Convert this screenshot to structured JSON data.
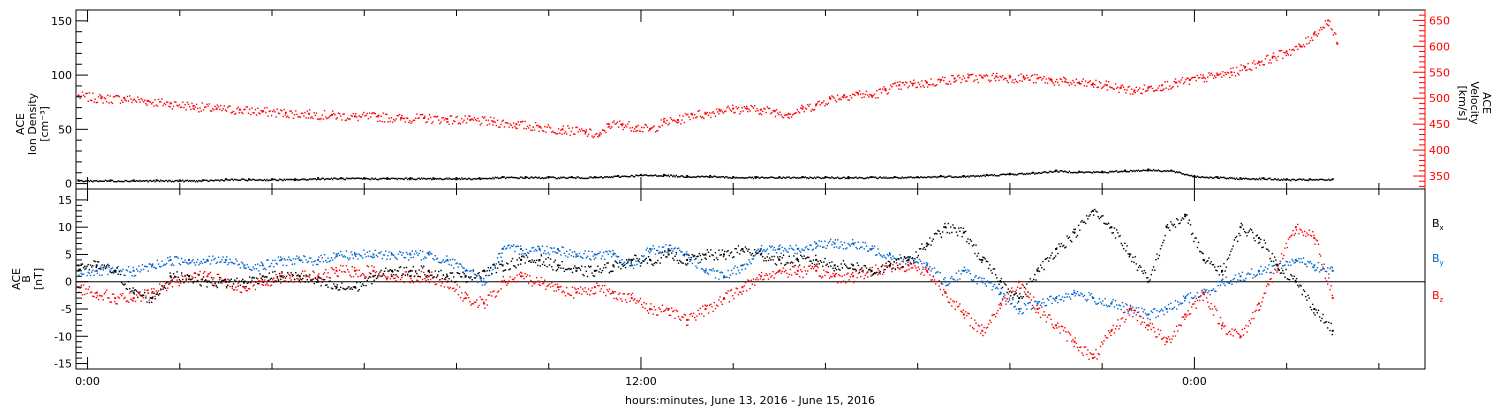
{
  "colors": {
    "axis": "#000000",
    "density": "#000000",
    "velocity": "#ff0000",
    "bx": "#000000",
    "by": "#0066cc",
    "bz": "#ff0000"
  },
  "chart_data": [
    {
      "type": "scatter",
      "panel": "plasma",
      "title": "",
      "ylabel": [
        "ACE",
        "Ion Density",
        "[cm⁻³]"
      ],
      "ylim": [
        -5,
        160
      ],
      "yticks": [
        0,
        50,
        100,
        150
      ],
      "y2label": [
        "ACE",
        "Velocity",
        "[km/s]"
      ],
      "y2lim": [
        325,
        670
      ],
      "y2ticks": [
        350,
        400,
        450,
        500,
        550,
        600,
        650
      ],
      "x_hours": [
        -0.25,
        29
      ],
      "grid": false,
      "series": [
        {
          "axis": "left",
          "color": "#000000",
          "x": [
            -0.2,
            0.5,
            1.0,
            1.5,
            2.0,
            2.5,
            3.0,
            3.5,
            4.0,
            4.5,
            5.0,
            5.5,
            6.0,
            6.5,
            7.0,
            7.5,
            8.0,
            8.5,
            9.0,
            9.5,
            10.0,
            10.5,
            11.0,
            11.5,
            12.0,
            12.5,
            13.0,
            13.5,
            14.0,
            14.5,
            15.0,
            15.5,
            16.0,
            16.5,
            17.0,
            17.5,
            18.0,
            18.5,
            19.0,
            19.5,
            20.0,
            20.5,
            21.0,
            21.5,
            22.0,
            22.5,
            23.0,
            23.5,
            24.0,
            24.5,
            25.0,
            25.5,
            26.0,
            26.5,
            27.0
          ],
          "y": [
            3,
            3,
            3,
            3,
            3,
            3,
            4,
            4,
            4,
            4,
            5,
            5,
            5,
            5,
            5,
            5,
            5,
            5,
            6,
            6,
            6,
            6,
            6,
            7,
            8,
            8,
            7,
            7,
            6,
            6,
            6,
            6,
            6,
            6,
            6,
            6,
            6,
            7,
            7,
            8,
            9,
            10,
            12,
            11,
            11,
            12,
            13,
            12,
            7,
            6,
            5,
            5,
            4,
            4,
            4
          ]
        },
        {
          "axis": "right",
          "color": "#ff0000",
          "x": [
            -0.2,
            0.3,
            0.8,
            1.3,
            1.8,
            2.3,
            2.8,
            3.3,
            3.8,
            4.3,
            4.8,
            5.3,
            5.8,
            6.3,
            6.8,
            7.3,
            7.8,
            8.3,
            8.8,
            9.3,
            9.8,
            10.3,
            10.8,
            11.1,
            11.3,
            11.6,
            11.9,
            12.2,
            12.5,
            12.8,
            13.1,
            13.4,
            13.7,
            14.0,
            14.3,
            14.6,
            14.9,
            15.2,
            15.5,
            15.8,
            16.1,
            16.4,
            16.7,
            17.0,
            17.3,
            17.6,
            17.9,
            18.2,
            18.5,
            18.8,
            19.1,
            19.4,
            19.7,
            20.0,
            20.3,
            20.6,
            20.9,
            21.2,
            21.5,
            21.8,
            22.1,
            22.4,
            22.7,
            23.0,
            23.3,
            23.6,
            23.9,
            24.2,
            24.5,
            24.8,
            25.1,
            25.4,
            25.7,
            26.0,
            26.3,
            26.6,
            26.9,
            27.1
          ],
          "y": [
            505,
            500,
            500,
            495,
            490,
            485,
            480,
            478,
            475,
            472,
            470,
            468,
            465,
            465,
            462,
            462,
            460,
            458,
            455,
            450,
            445,
            440,
            435,
            428,
            450,
            450,
            445,
            440,
            455,
            458,
            470,
            470,
            478,
            480,
            480,
            478,
            475,
            470,
            480,
            488,
            500,
            505,
            510,
            505,
            518,
            525,
            528,
            530,
            535,
            538,
            540,
            540,
            542,
            540,
            540,
            538,
            535,
            532,
            530,
            528,
            525,
            520,
            515,
            520,
            525,
            530,
            535,
            540,
            545,
            550,
            560,
            570,
            580,
            590,
            600,
            625,
            650,
            605
          ]
        }
      ]
    },
    {
      "type": "scatter",
      "panel": "magnetic",
      "title": "",
      "ylabel": [
        "ACE",
        "B",
        "[nT]"
      ],
      "ylim": [
        -16,
        17
      ],
      "yticks": [
        -15,
        -10,
        -5,
        0,
        5,
        10,
        15
      ],
      "x_hours": [
        -0.25,
        29
      ],
      "legend": [
        "Bx",
        "By",
        "Bz"
      ],
      "legend_position": "right",
      "grid": false,
      "series": [
        {
          "name": "Bx",
          "color": "#000000",
          "x": [
            -0.2,
            0.2,
            0.6,
            1.0,
            1.4,
            1.8,
            2.2,
            2.6,
            3.0,
            3.4,
            3.8,
            4.2,
            4.6,
            5.0,
            5.4,
            5.8,
            6.2,
            6.6,
            7.0,
            7.4,
            7.8,
            8.2,
            8.6,
            9.0,
            9.4,
            9.8,
            10.2,
            10.6,
            11.0,
            11.4,
            11.8,
            12.2,
            12.6,
            13.0,
            13.4,
            13.8,
            14.2,
            14.6,
            15.0,
            15.4,
            15.8,
            16.2,
            16.6,
            17.0,
            17.4,
            17.8,
            18.2,
            18.6,
            19.0,
            19.4,
            19.8,
            20.2,
            20.6,
            21.0,
            21.4,
            21.8,
            22.2,
            22.6,
            23.0,
            23.4,
            23.8,
            24.2,
            24.6,
            25.0,
            25.4,
            25.8,
            26.2,
            26.6,
            27.0
          ],
          "y": [
            3,
            3,
            2,
            -2,
            -3,
            1,
            1,
            0,
            0,
            0,
            1,
            1,
            1,
            0,
            -1,
            -1,
            1,
            2,
            2,
            2,
            1,
            1,
            2,
            3,
            4,
            4,
            3,
            2,
            2,
            3,
            4,
            4,
            5,
            4,
            5,
            5,
            6,
            5,
            4,
            4,
            4,
            3,
            3,
            2,
            3,
            4,
            7,
            10,
            9,
            4,
            0,
            -3,
            2,
            6,
            9,
            13,
            10,
            5,
            0,
            10,
            12,
            4,
            2,
            10,
            8,
            3,
            0,
            -5,
            -9
          ]
        },
        {
          "name": "By",
          "color": "#0066cc",
          "x": [
            -0.2,
            0.2,
            0.6,
            1.0,
            1.4,
            1.8,
            2.2,
            2.6,
            3.0,
            3.4,
            3.8,
            4.2,
            4.6,
            5.0,
            5.4,
            5.8,
            6.2,
            6.6,
            7.0,
            7.4,
            7.8,
            8.2,
            8.6,
            9.0,
            9.4,
            9.8,
            10.2,
            10.6,
            11.0,
            11.4,
            11.8,
            12.2,
            12.6,
            13.0,
            13.4,
            13.8,
            14.2,
            14.6,
            15.0,
            15.4,
            15.8,
            16.2,
            16.6,
            17.0,
            17.4,
            17.8,
            18.2,
            18.6,
            19.0,
            19.4,
            19.8,
            20.2,
            20.6,
            21.0,
            21.4,
            21.8,
            22.2,
            22.6,
            23.0,
            23.4,
            23.8,
            24.2,
            24.6,
            25.0,
            25.4,
            25.8,
            26.2,
            26.6,
            27.0
          ],
          "y": [
            2,
            2,
            2,
            2,
            3,
            4,
            4,
            4,
            4,
            3,
            3,
            4,
            4,
            4,
            5,
            5,
            5,
            5,
            5,
            5,
            4,
            2,
            0,
            6,
            6,
            6,
            6,
            5,
            5,
            5,
            3,
            6,
            6,
            5,
            2,
            1,
            3,
            6,
            6,
            6,
            7,
            7,
            7,
            6,
            5,
            4,
            3,
            0,
            2,
            0,
            -2,
            -5,
            -4,
            -3,
            -2,
            -3,
            -4,
            -5,
            -6,
            -5,
            -3,
            -2,
            0,
            1,
            2,
            3,
            4,
            3,
            2
          ]
        },
        {
          "name": "Bz",
          "color": "#ff0000",
          "x": [
            -0.2,
            0.2,
            0.6,
            1.0,
            1.4,
            1.8,
            2.2,
            2.6,
            3.0,
            3.4,
            3.8,
            4.2,
            4.6,
            5.0,
            5.4,
            5.8,
            6.2,
            6.6,
            7.0,
            7.4,
            7.8,
            8.2,
            8.6,
            9.0,
            9.4,
            9.8,
            10.2,
            10.6,
            11.0,
            11.4,
            11.8,
            12.2,
            12.6,
            13.0,
            13.4,
            13.8,
            14.2,
            14.6,
            15.0,
            15.4,
            15.8,
            16.2,
            16.6,
            17.0,
            17.4,
            17.8,
            18.2,
            18.6,
            19.0,
            19.4,
            19.8,
            20.2,
            20.6,
            21.0,
            21.4,
            21.8,
            22.2,
            22.6,
            23.0,
            23.4,
            23.8,
            24.2,
            24.6,
            25.0,
            25.4,
            25.8,
            26.2,
            26.6,
            27.0
          ],
          "y": [
            -1,
            -2,
            -3,
            -3,
            -2,
            0,
            1,
            1,
            0,
            -1,
            0,
            1,
            1,
            1,
            2,
            2,
            2,
            1,
            1,
            1,
            0,
            -3,
            -4,
            0,
            1,
            0,
            -1,
            -2,
            -1,
            -2,
            -3,
            -5,
            -5,
            -7,
            -5,
            -3,
            -1,
            1,
            2,
            2,
            2,
            1,
            1,
            2,
            3,
            3,
            2,
            -2,
            -6,
            -9,
            -4,
            0,
            -5,
            -8,
            -11,
            -14,
            -9,
            -5,
            -8,
            -11,
            -6,
            -2,
            -8,
            -10,
            -4,
            3,
            10,
            8,
            -3
          ]
        }
      ]
    }
  ],
  "x_axis": {
    "tick_labels": [
      {
        "hour": 0,
        "label": "0:00"
      },
      {
        "hour": 12,
        "label": "12:00"
      },
      {
        "hour": 24,
        "label": "0:00"
      }
    ],
    "caption": "hours:minutes, June 13, 2016 - June 15, 2016"
  },
  "legend_labels": {
    "bx": {
      "main": "B",
      "sub": "x"
    },
    "by": {
      "main": "B",
      "sub": "y"
    },
    "bz": {
      "main": "B",
      "sub": "z"
    }
  }
}
